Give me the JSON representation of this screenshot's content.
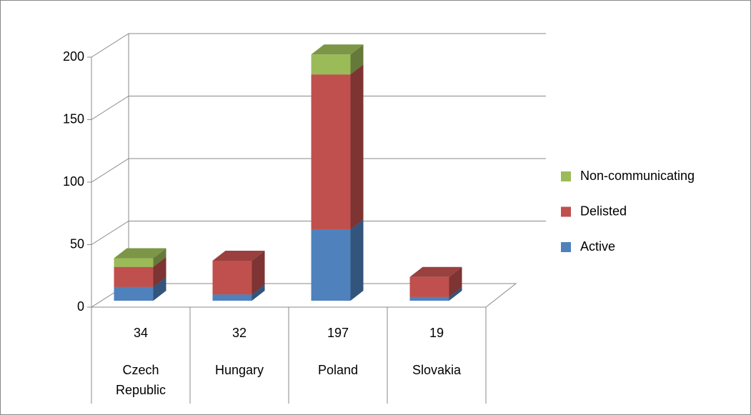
{
  "chart_data": {
    "type": "bar3d_stacked",
    "categories": [
      "Czech Republic",
      "Hungary",
      "Poland",
      "Slovakia"
    ],
    "totals": [
      34,
      32,
      197,
      19
    ],
    "series": [
      {
        "name": "Active",
        "color": "#4f81bd",
        "values": [
          11,
          5,
          57,
          3
        ]
      },
      {
        "name": "Delisted",
        "color": "#c0504d",
        "values": [
          16,
          27,
          124,
          16
        ]
      },
      {
        "name": "Non-communicating",
        "color": "#9bbb59",
        "values": [
          7,
          0,
          16,
          0
        ]
      }
    ],
    "ylim": [
      0,
      200
    ],
    "yticks": [
      0,
      50,
      100,
      150,
      200
    ],
    "grid": true,
    "legend": "right"
  }
}
